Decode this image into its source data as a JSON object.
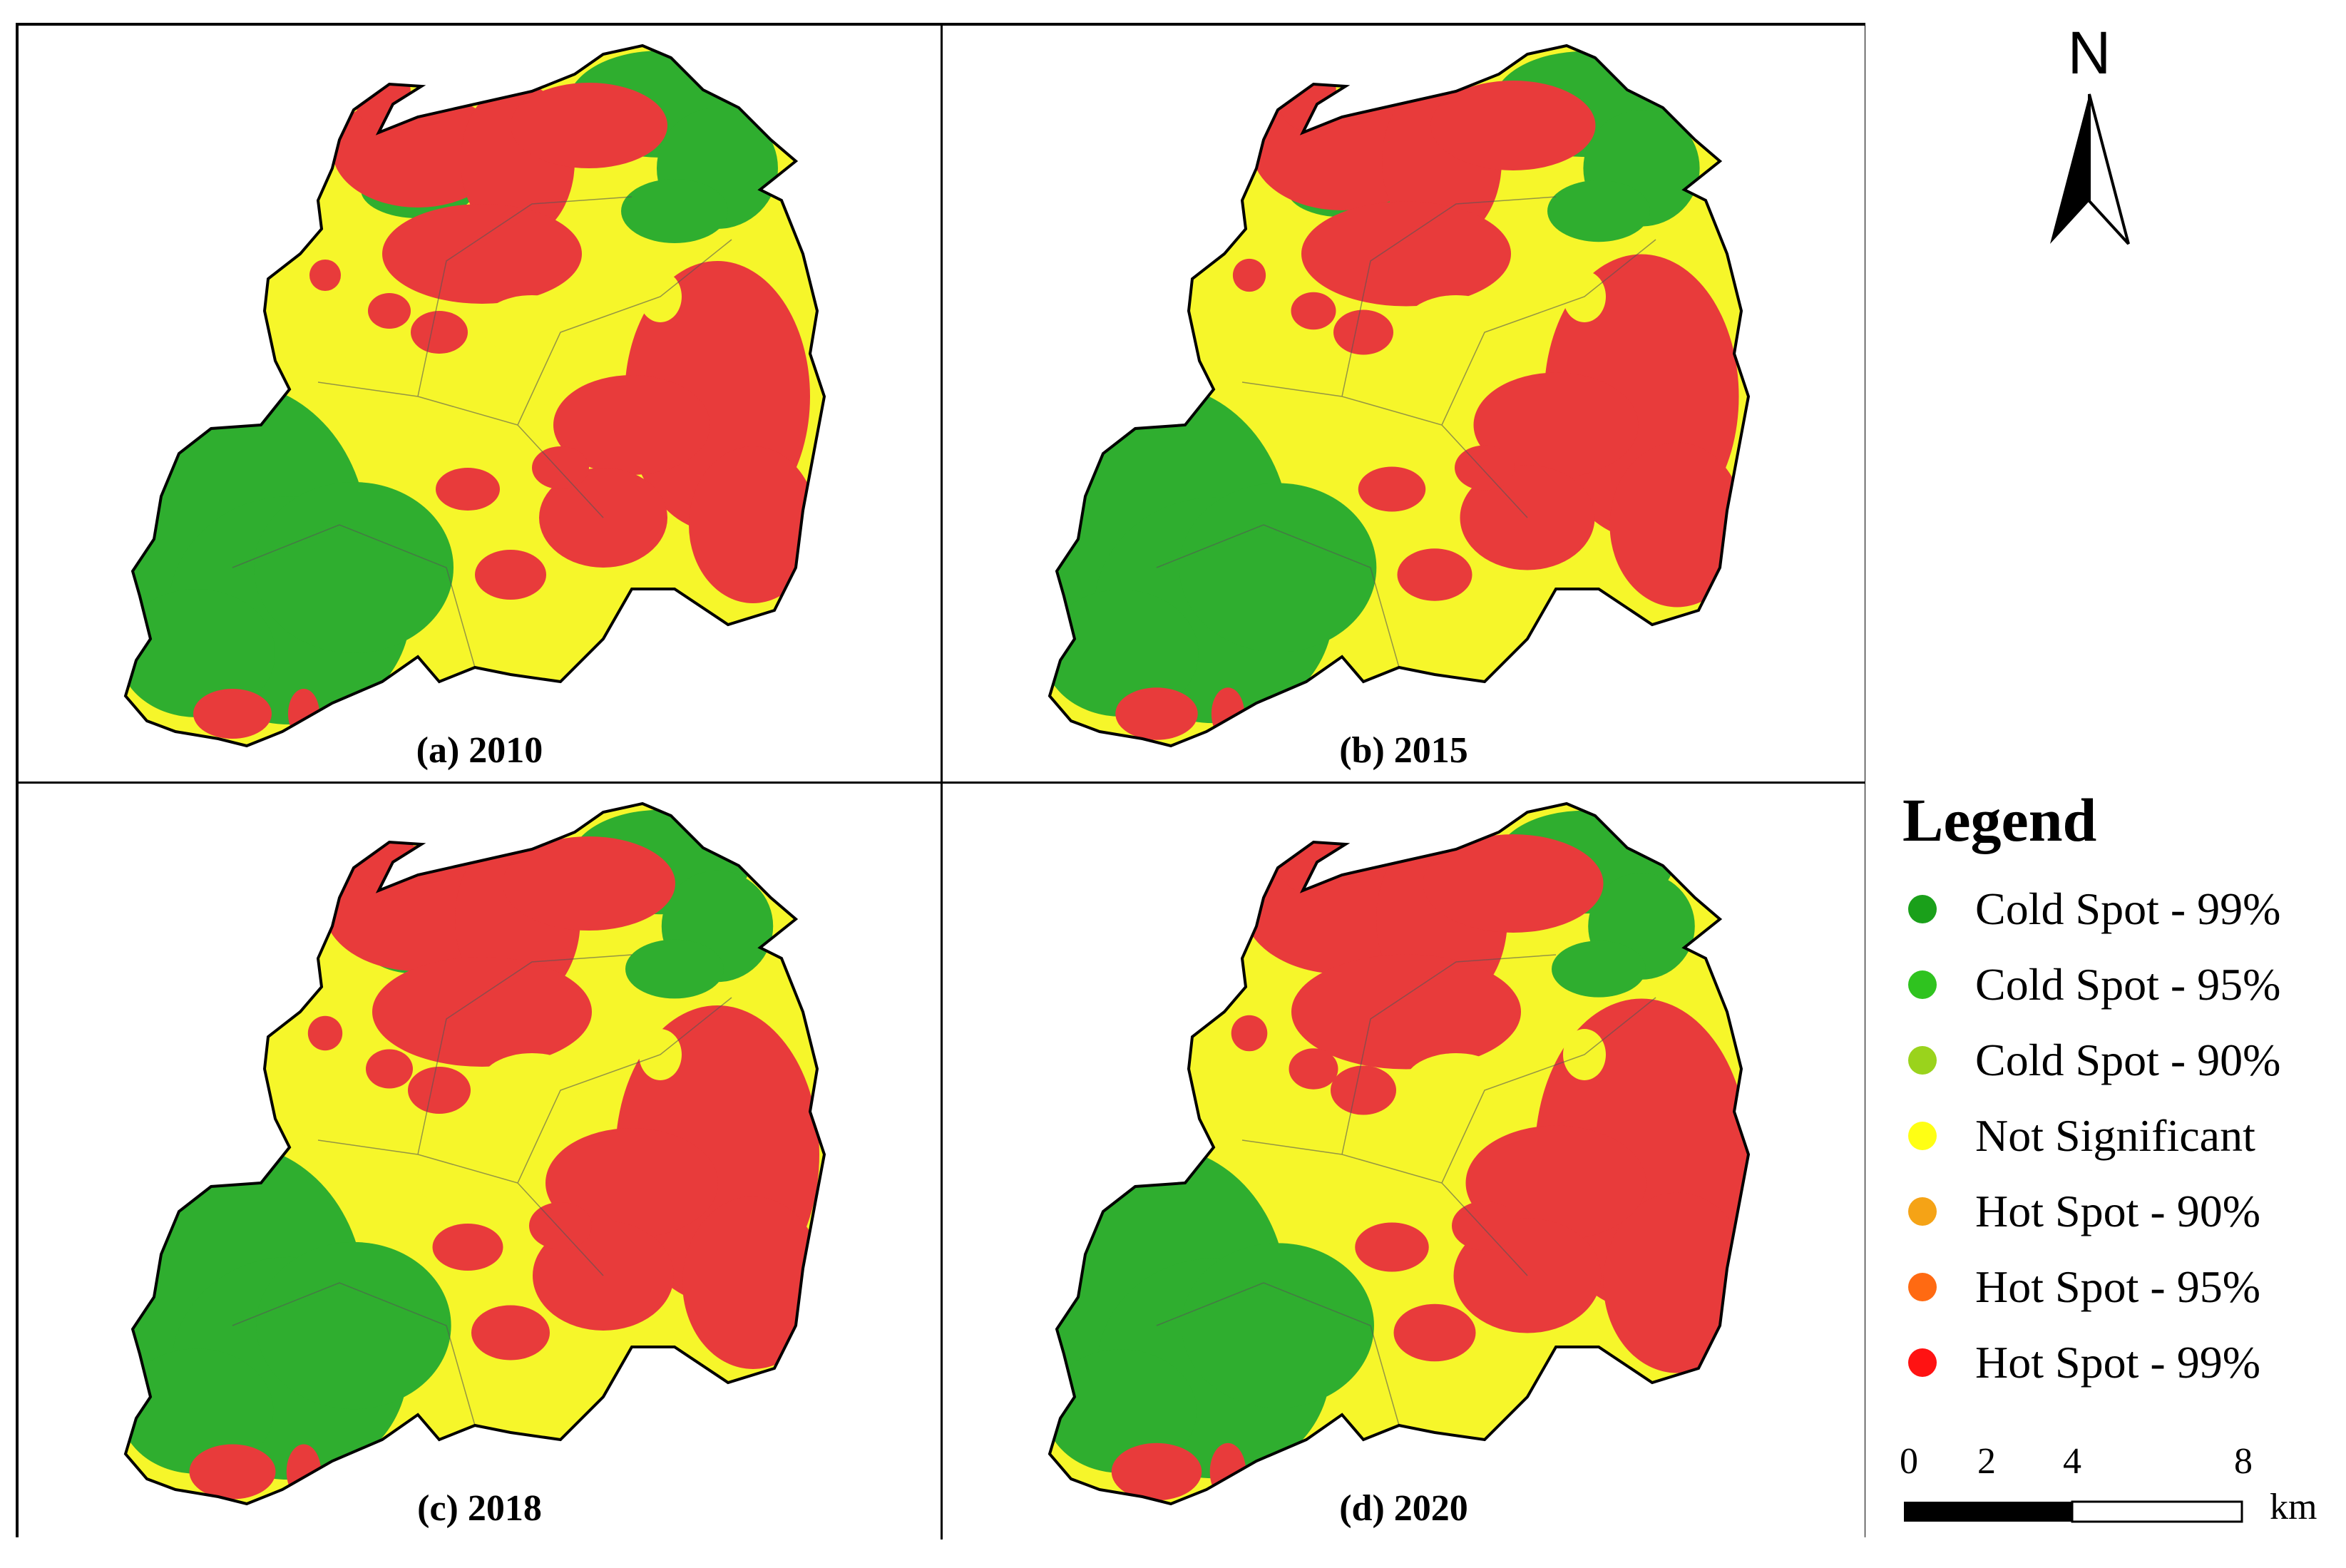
{
  "panels": [
    {
      "label": "(a) 2010"
    },
    {
      "label": "(b) 2015"
    },
    {
      "label": "(c) 2018"
    },
    {
      "label": "(d) 2020"
    }
  ],
  "north_arrow": {
    "letter": "N"
  },
  "legend": {
    "title": "Legend",
    "items": [
      {
        "label": "Cold Spot - 99%",
        "color": "#1aa01a"
      },
      {
        "label": "Cold Spot - 95%",
        "color": "#2fc31f"
      },
      {
        "label": "Cold Spot - 90%",
        "color": "#9ad31c"
      },
      {
        "label": "Not Significant",
        "color": "#ffff14"
      },
      {
        "label": "Hot Spot - 90%",
        "color": "#f5a316"
      },
      {
        "label": "Hot Spot - 95%",
        "color": "#ff6a12"
      },
      {
        "label": "Hot Spot - 99%",
        "color": "#ff1212"
      }
    ]
  },
  "scale_bar": {
    "ticks": [
      "0",
      "2",
      "4",
      "8"
    ],
    "units": "km"
  },
  "colors": {
    "cold99": "#2fae2f",
    "not_significant": "#f6f62a",
    "hot99": "#e83b3b",
    "outline": "#000000"
  }
}
